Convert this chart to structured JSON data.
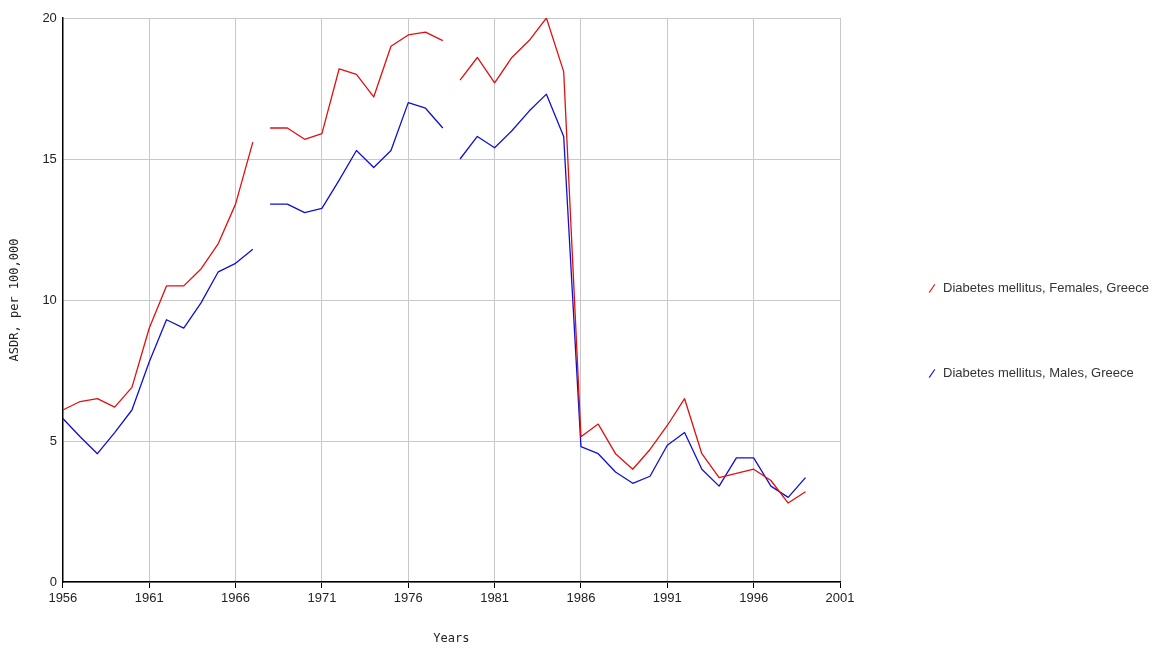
{
  "chart_data": {
    "type": "line",
    "xlabel": "Years",
    "ylabel": "ASDR, per 100,000",
    "x": [
      1956,
      1957,
      1958,
      1959,
      1960,
      1961,
      1962,
      1963,
      1964,
      1965,
      1966,
      1967,
      1967.5,
      1968,
      1969,
      1970,
      1971,
      1972,
      1973,
      1974,
      1975,
      1976,
      1977,
      1978,
      1978.5,
      1979,
      1980,
      1981,
      1982,
      1983,
      1984,
      1985,
      1986,
      1987,
      1988,
      1989,
      1990,
      1991,
      1992,
      1993,
      1994,
      1995,
      1996,
      1997,
      1998,
      1999
    ],
    "series": [
      {
        "name": "Diabetes mellitus, Females, Greece",
        "color": "#e01010",
        "values": [
          6.1,
          6.4,
          6.5,
          6.2,
          6.9,
          9.0,
          10.5,
          10.5,
          11.1,
          12.0,
          13.4,
          15.6,
          null,
          16.1,
          16.1,
          15.7,
          15.9,
          18.2,
          18.0,
          17.2,
          19.0,
          19.4,
          19.5,
          19.2,
          null,
          17.8,
          18.6,
          17.7,
          18.6,
          19.2,
          20.0,
          18.1,
          5.15,
          5.6,
          4.55,
          4.0,
          4.7,
          5.55,
          6.5,
          4.55,
          3.7,
          3.85,
          4.0,
          3.6,
          2.8,
          3.2
        ]
      },
      {
        "name": "Diabetes mellitus, Males, Greece",
        "color": "#1010d0",
        "values": [
          5.8,
          5.15,
          4.55,
          5.3,
          6.1,
          7.8,
          9.3,
          9.0,
          9.9,
          11.0,
          11.3,
          11.8,
          null,
          13.4,
          13.4,
          13.1,
          13.25,
          14.25,
          15.3,
          14.7,
          15.3,
          17.0,
          16.8,
          16.1,
          null,
          15.0,
          15.8,
          15.4,
          16.0,
          16.7,
          17.3,
          15.8,
          4.8,
          4.55,
          3.9,
          3.5,
          3.75,
          4.85,
          5.3,
          4.0,
          3.4,
          4.4,
          4.4,
          3.4,
          3.0,
          3.7
        ]
      }
    ],
    "xlim": [
      1956,
      2001
    ],
    "xticks": [
      1956,
      1961,
      1966,
      1971,
      1976,
      1981,
      1986,
      1991,
      1996,
      2001
    ],
    "ylim": [
      0,
      20
    ],
    "yticks": [
      0,
      5,
      10,
      15,
      20
    ],
    "grid": true,
    "legend": "right",
    "marker": "none",
    "line_style": "solid"
  }
}
